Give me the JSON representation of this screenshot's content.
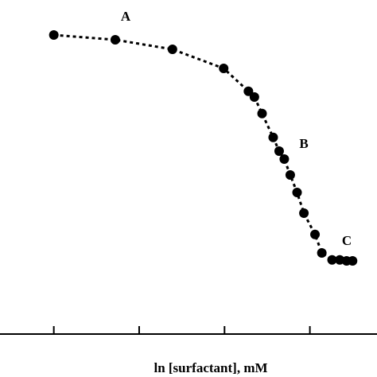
{
  "chart_data": {
    "type": "line",
    "x_label": "ln [surfactant], mM",
    "annotations": [
      "A",
      "B",
      "C"
    ],
    "x": [
      1.0,
      1.72,
      2.39,
      2.99,
      3.28,
      3.35,
      3.44,
      3.57,
      3.64,
      3.7,
      3.77,
      3.85,
      3.93,
      4.06,
      4.14,
      4.26,
      4.35,
      4.43,
      4.5
    ],
    "series": [
      {
        "color": "#000000",
        "values": [
          9.4,
          9.25,
          8.95,
          8.35,
          7.63,
          7.45,
          6.93,
          6.18,
          5.75,
          5.5,
          5.0,
          4.45,
          3.8,
          3.13,
          2.55,
          2.33,
          2.33,
          2.3,
          2.3
        ]
      }
    ],
    "xlim": [
      0.5,
      4.6
    ],
    "xticks": [
      1,
      2,
      3,
      4
    ],
    "ylim": [
      0,
      10
    ]
  }
}
